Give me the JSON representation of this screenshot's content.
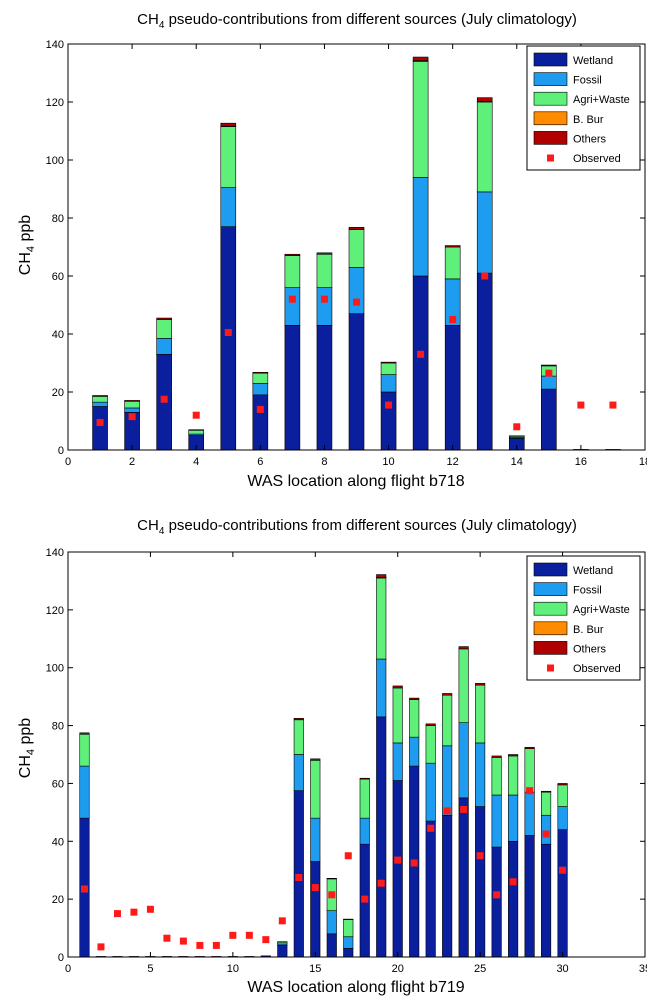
{
  "colors": {
    "Wetland": "#0a1f9e",
    "Fossil": "#1e9cf0",
    "Agri+Waste": "#5ef07a",
    "B. Bur": "#ff8c00",
    "Others": "#b00000",
    "Observed": "#ff1a1a"
  },
  "chart_data": [
    {
      "type": "bar",
      "stacked": true,
      "title": "CH4 pseudo-contributions from different sources (July climatology)",
      "title_main": "CH",
      "title_sub": "4",
      "title_rest": " pseudo-contributions from different sources (July climatology)",
      "xlabel": "WAS location along flight b718",
      "ylabel": "CH4 ppb",
      "ylabel_main": "CH",
      "ylabel_sub": "4",
      "ylabel_rest": " ppb",
      "xlim": [
        0,
        18
      ],
      "ylim": [
        0,
        140
      ],
      "xticks": [
        0,
        2,
        4,
        6,
        8,
        10,
        12,
        14,
        16,
        18
      ],
      "yticks": [
        0,
        20,
        40,
        60,
        80,
        100,
        120,
        140
      ],
      "legend_position": "top-right",
      "x": [
        1,
        2,
        3,
        4,
        5,
        6,
        7,
        8,
        9,
        10,
        11,
        12,
        13,
        14,
        15,
        16,
        17
      ],
      "series": [
        {
          "name": "Wetland",
          "values": [
            15,
            13,
            33,
            5,
            77,
            19,
            43,
            43,
            47,
            20,
            60,
            43,
            61,
            4,
            21,
            0.2,
            0.2
          ]
        },
        {
          "name": "Fossil",
          "values": [
            1.5,
            1.5,
            5.5,
            0.5,
            13.5,
            4,
            13,
            13,
            16,
            6,
            34,
            16,
            28,
            0.3,
            4.5,
            0,
            0
          ]
        },
        {
          "name": "Agri+Waste",
          "values": [
            2,
            2.3,
            6.5,
            1.3,
            21,
            3.5,
            11,
            11.5,
            13,
            4,
            40,
            11,
            31,
            0.5,
            3.5,
            0,
            0
          ]
        },
        {
          "name": "B. Bur",
          "values": [
            0,
            0,
            0,
            0,
            0.2,
            0,
            0,
            0,
            0,
            0,
            0.3,
            0,
            0.2,
            0,
            0,
            0,
            0
          ]
        },
        {
          "name": "Others",
          "values": [
            0.3,
            0.3,
            0.5,
            0.2,
            1,
            0.3,
            0.5,
            0.5,
            0.8,
            0.3,
            1.2,
            0.5,
            1.3,
            0.1,
            0.3,
            0,
            0
          ]
        }
      ],
      "observed": [
        9.5,
        11.5,
        17.5,
        12,
        40.5,
        14,
        52,
        52,
        51,
        15.5,
        33,
        45,
        60,
        8,
        26.5,
        15.5,
        15.5
      ]
    },
    {
      "type": "bar",
      "stacked": true,
      "title": "CH4 pseudo-contributions from different sources (July climatology)",
      "title_main": "CH",
      "title_sub": "4",
      "title_rest": " pseudo-contributions from different sources (July climatology)",
      "xlabel": "WAS location along flight b719",
      "ylabel": "CH4 ppb",
      "ylabel_main": "CH",
      "ylabel_sub": "4",
      "ylabel_rest": " ppb",
      "xlim": [
        0,
        35
      ],
      "ylim": [
        0,
        140
      ],
      "xticks": [
        0,
        5,
        10,
        15,
        20,
        25,
        30,
        35
      ],
      "yticks": [
        0,
        20,
        40,
        60,
        80,
        100,
        120,
        140
      ],
      "legend_position": "top-right",
      "x": [
        1,
        2,
        3,
        4,
        5,
        6,
        7,
        8,
        9,
        10,
        11,
        12,
        13,
        14,
        15,
        16,
        17,
        18,
        19,
        20,
        21,
        22,
        23,
        24,
        25,
        26,
        27,
        28,
        29,
        30
      ],
      "series": [
        {
          "name": "Wetland",
          "values": [
            48,
            0.2,
            0.2,
            0.2,
            0.2,
            0.2,
            0.2,
            0.2,
            0.2,
            0.2,
            0.2,
            0.4,
            4,
            57.5,
            33,
            8,
            3,
            39,
            83,
            61,
            66,
            47,
            49,
            55,
            52,
            38,
            40,
            42,
            39,
            44
          ]
        },
        {
          "name": "Fossil",
          "values": [
            18,
            0,
            0,
            0,
            0,
            0,
            0,
            0,
            0,
            0,
            0,
            0,
            0.5,
            12.5,
            15,
            8,
            4,
            9,
            20,
            13,
            10,
            20,
            24,
            26,
            22,
            18,
            16,
            15,
            10,
            8
          ]
        },
        {
          "name": "Agri+Waste",
          "values": [
            11,
            0,
            0,
            0,
            0,
            0,
            0,
            0,
            0,
            0,
            0,
            0,
            0.7,
            12,
            20,
            11,
            6,
            13.5,
            28,
            19,
            13,
            13,
            17.5,
            25.5,
            20,
            13,
            13.5,
            15,
            8,
            7.5
          ]
        },
        {
          "name": "B. Bur",
          "values": [
            0,
            0,
            0,
            0,
            0,
            0,
            0,
            0,
            0,
            0,
            0,
            0,
            0,
            0,
            0,
            0,
            0,
            0,
            0.2,
            0,
            0,
            0,
            0,
            0,
            0,
            0,
            0,
            0,
            0,
            0
          ]
        },
        {
          "name": "Others",
          "values": [
            0.5,
            0,
            0,
            0,
            0,
            0,
            0,
            0,
            0,
            0,
            0,
            0,
            0.1,
            0.5,
            0.5,
            0.2,
            0.1,
            0.3,
            1,
            0.7,
            0.5,
            0.6,
            0.6,
            0.8,
            0.6,
            0.5,
            0.5,
            0.5,
            0.3,
            0.5
          ]
        }
      ],
      "observed": [
        23.5,
        3.5,
        15,
        15.5,
        16.5,
        6.5,
        5.5,
        4,
        4,
        7.5,
        7.5,
        6,
        12.5,
        27.5,
        24,
        21.5,
        35,
        20,
        25.5,
        33.5,
        32.5,
        44.5,
        50.5,
        51,
        35,
        21.5,
        26,
        57.5,
        42.5,
        30
      ]
    }
  ]
}
